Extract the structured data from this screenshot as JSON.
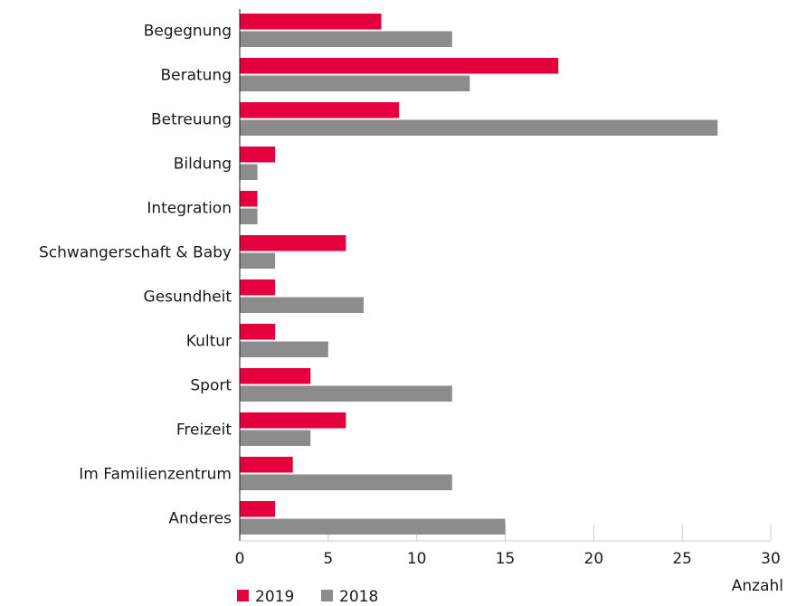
{
  "chart_data": {
    "type": "barh",
    "categories": [
      "Begegnung",
      "Beratung",
      "Betreuung",
      "Bildung",
      "Integration",
      "Schwangerschaft & Baby",
      "Gesundheit",
      "Kultur",
      "Sport",
      "Freizeit",
      "Im Familienzentrum",
      "Anderes"
    ],
    "series": [
      {
        "name": "2019",
        "color": "#e4003d",
        "values": [
          8,
          18,
          9,
          2,
          1,
          6,
          2,
          2,
          4,
          6,
          3,
          2
        ]
      },
      {
        "name": "2018",
        "color": "#8c8c8c",
        "values": [
          12,
          13,
          27,
          1,
          1,
          2,
          7,
          5,
          12,
          4,
          12,
          15
        ]
      }
    ],
    "xlabel": "Anzahl",
    "xlim": [
      0,
      30
    ],
    "xticks": [
      0,
      5,
      10,
      15,
      20,
      25,
      30
    ],
    "legend": "bottom-left"
  }
}
